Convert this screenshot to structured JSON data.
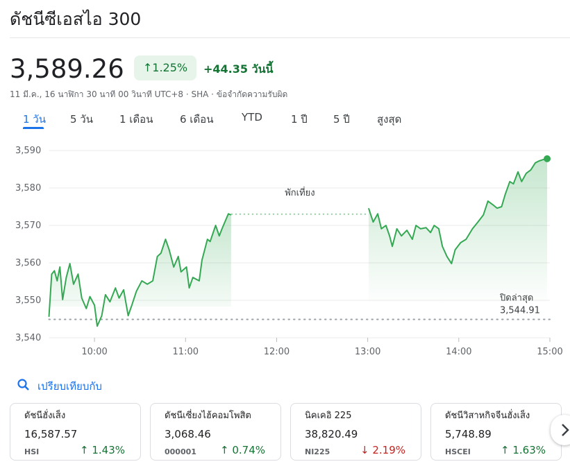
{
  "header": {
    "title": "ดัชนีซีเอสไอ 300",
    "price": "3,589.26",
    "change_percent": "1.25%",
    "change": "+44.35",
    "change_suffix": "วันนี้",
    "meta": "11 มี.ค., 16 นาฬิกา 30 นาที 00 วินาที UTC+8 · SHA · ข้อจำกัดความรับผิด"
  },
  "tabs": {
    "items": [
      "1 วัน",
      "5 วัน",
      "1 เดือน",
      "6 เดือน",
      "YTD",
      "1 ปี",
      "5 ปี",
      "สูงสุด"
    ],
    "active": 0
  },
  "chart_data": {
    "type": "line",
    "color": "#34a853",
    "x": [
      9.5,
      9.53,
      9.56,
      9.59,
      9.62,
      9.65,
      9.69,
      9.73,
      9.77,
      9.82,
      9.86,
      9.91,
      9.95,
      10.0,
      10.03,
      10.08,
      10.12,
      10.17,
      10.23,
      10.27,
      10.32,
      10.37,
      10.41,
      10.46,
      10.52,
      10.58,
      10.64,
      10.69,
      10.73,
      10.78,
      10.82,
      10.87,
      10.92,
      10.95,
      11.01,
      11.04,
      11.08,
      11.15,
      11.18,
      11.24,
      11.27,
      11.33,
      11.37,
      11.4,
      11.47,
      11.5,
      12.25,
      13.01,
      13.06,
      13.11,
      13.15,
      13.2,
      13.24,
      13.27,
      13.32,
      13.37,
      13.43,
      13.49,
      13.53,
      13.58,
      13.64,
      13.69,
      13.73,
      13.78,
      13.82,
      13.87,
      13.92,
      13.96,
      14.02,
      14.08,
      14.15,
      14.21,
      14.27,
      14.32,
      14.37,
      14.42,
      14.47,
      14.51,
      14.56,
      14.6,
      14.65,
      14.69,
      14.74,
      14.79,
      14.84,
      14.88,
      14.93,
      14.97
    ],
    "values": [
      3545.6,
      3557,
      3557.9,
      3555.2,
      3558.9,
      3550.2,
      3556.1,
      3559.8,
      3554.3,
      3557,
      3550.6,
      3547.8,
      3551,
      3548.7,
      3543.1,
      3545.9,
      3551.5,
      3549.6,
      3553.3,
      3550.6,
      3552.8,
      3545.9,
      3548.7,
      3552.4,
      3555.2,
      3554.3,
      3555.2,
      3561.7,
      3562.6,
      3566.3,
      3563.5,
      3558.9,
      3561.7,
      3557.6,
      3558.9,
      3553.3,
      3556.1,
      3555.2,
      3560.7,
      3566.3,
      3565.7,
      3570,
      3567.2,
      3569.1,
      3573.1,
      3572.8,
      null,
      3574.6,
      3570.9,
      3573.1,
      3569.1,
      3570,
      3567.2,
      3564.4,
      3569.1,
      3567.2,
      3568.7,
      3566.3,
      3570,
      3569.1,
      3569.4,
      3568.1,
      3570,
      3569.1,
      3564.4,
      3561.7,
      3559.8,
      3563.5,
      3565.4,
      3566.3,
      3569.1,
      3570.9,
      3572.8,
      3576.5,
      3575.6,
      3574.6,
      3575,
      3578.3,
      3581.7,
      3581.1,
      3584.3,
      3581.7,
      3583.9,
      3584.8,
      3586.7,
      3587.2,
      3587.6,
      3587.8
    ],
    "xlim": [
      9.5,
      15
    ],
    "ylim": [
      3540,
      3590
    ],
    "xticks": [
      {
        "value": 10,
        "label": "10:00"
      },
      {
        "value": 11,
        "label": "11:00"
      },
      {
        "value": 12,
        "label": "12:00"
      },
      {
        "value": 13,
        "label": "13:00"
      },
      {
        "value": 14,
        "label": "14:00"
      },
      {
        "value": 15,
        "label": "15:00"
      }
    ],
    "yticks": [
      {
        "value": 3540,
        "label": "3,540"
      },
      {
        "value": 3550,
        "label": "3,550"
      },
      {
        "value": 3560,
        "label": "3,560"
      },
      {
        "value": 3570,
        "label": "3,570"
      },
      {
        "value": 3580,
        "label": "3,580"
      },
      {
        "value": 3590,
        "label": "3,590"
      }
    ],
    "grid": true,
    "break_line": {
      "value": 3573,
      "label": "พักเที่ยง"
    },
    "previous_close": {
      "label": "ปิดล่าสุด",
      "value": 3544.91,
      "value_label": "3,544.91"
    }
  },
  "compare": {
    "label": "เปรียบเทียบกับ"
  },
  "cards": [
    {
      "name": "ดัชนีฮั่งเส็ง",
      "price": "16,587.57",
      "symbol": "HSI",
      "change": "1.43%",
      "trend": "up"
    },
    {
      "name": "ดัชนีเซี่ยงไฮ้คอมโพสิต",
      "price": "3,068.46",
      "symbol": "000001",
      "change": "0.74%",
      "trend": "up"
    },
    {
      "name": "นิคเคอิ 225",
      "price": "38,820.49",
      "symbol": "NI225",
      "change": "2.19%",
      "trend": "down"
    },
    {
      "name": "ดัชนีวิสาหกิจจีนฮั่งเส็ง",
      "price": "5,748.89",
      "symbol": "HSCEI",
      "change": "1.63%",
      "trend": "up"
    }
  ]
}
